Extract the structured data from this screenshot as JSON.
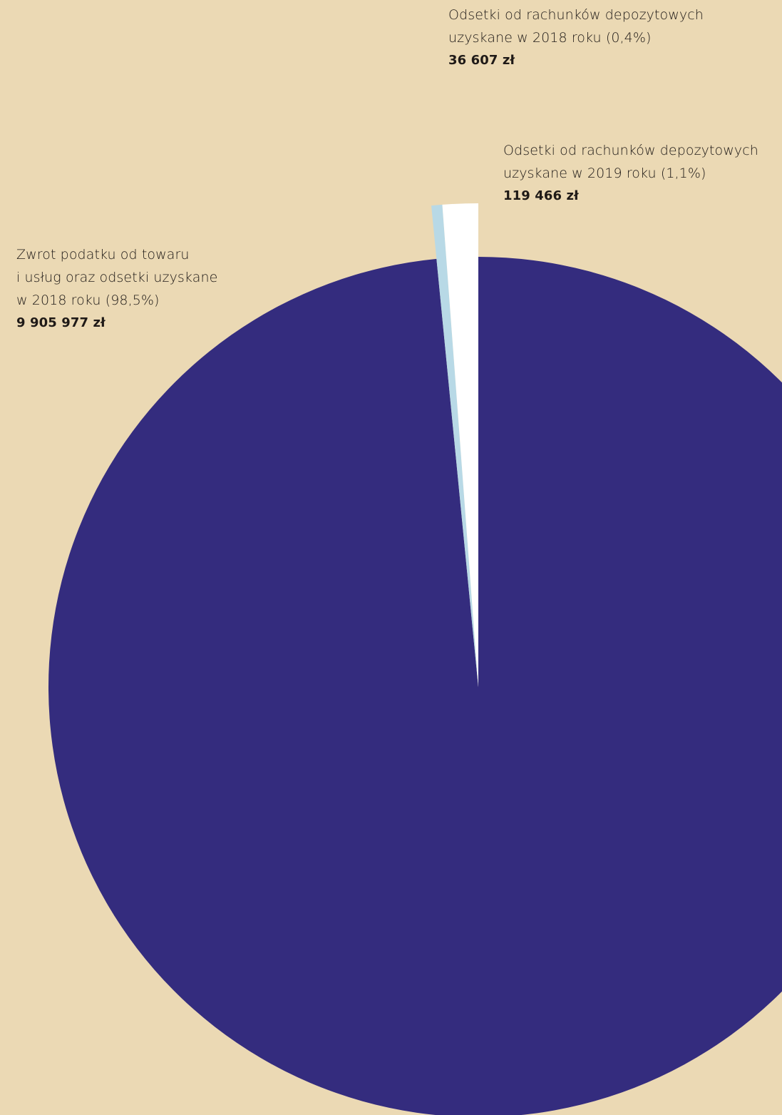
{
  "colors": {
    "background": "#ebd9b4",
    "vat_slice": "#342c7e",
    "interest_2019_slice": "#ffffff",
    "interest_2018_slice": "#b8d9e6"
  },
  "chart_data": {
    "type": "pie",
    "start_angle_deg": 0,
    "direction": "clockwise",
    "slices": [
      {
        "key": "vat",
        "label_lines": [
          "Zwrot podatku od towaru",
          "i usług oraz odsetki uzyskane",
          "w 2018 roku (98,5%)"
        ],
        "value_text": "9 905 977 zł",
        "value": 9905977,
        "percent": 98.5,
        "color": "#342c7e",
        "exploded": false
      },
      {
        "key": "interest_2018",
        "label_lines": [
          "Odsetki od rachunków depozytowych",
          "uzyskane w 2018 roku (0,4%)"
        ],
        "value_text": "36 607 zł",
        "value": 36607,
        "percent": 0.4,
        "color": "#b8d9e6",
        "exploded": true
      },
      {
        "key": "interest_2019",
        "label_lines": [
          "Odsetki od rachunków depozytowych",
          "uzyskane w 2019 roku (1,1%)"
        ],
        "value_text": "119 466 zł",
        "value": 119466,
        "percent": 1.1,
        "color": "#ffffff",
        "exploded": true
      }
    ]
  }
}
